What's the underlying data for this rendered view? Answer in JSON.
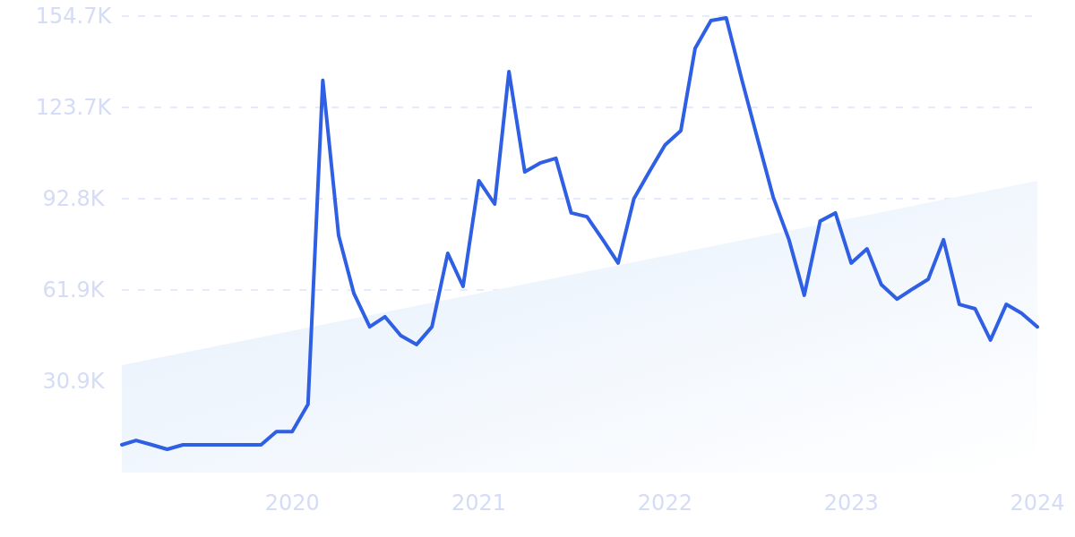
{
  "chart_data": {
    "type": "line",
    "x": [
      "2019-02",
      "2019-03",
      "2019-04",
      "2019-05",
      "2019-06",
      "2019-07",
      "2019-08",
      "2019-09",
      "2019-10",
      "2019-11",
      "2019-12",
      "2020-01",
      "2020-02",
      "2020-03",
      "2020-04",
      "2020-05",
      "2020-06",
      "2020-07",
      "2020-08",
      "2020-09",
      "2020-10",
      "2020-11",
      "2020-12",
      "2021-01",
      "2021-02",
      "2021-03",
      "2021-04",
      "2021-05",
      "2021-06",
      "2021-07",
      "2021-08",
      "2021-09",
      "2021-10",
      "2021-11",
      "2021-12",
      "2022-01",
      "2022-02",
      "2022-03",
      "2022-04",
      "2022-05",
      "2022-06",
      "2022-07",
      "2022-08",
      "2022-09",
      "2022-10",
      "2022-11",
      "2022-12",
      "2023-01",
      "2023-02",
      "2023-03",
      "2023-04",
      "2023-05",
      "2023-06",
      "2023-07",
      "2023-08",
      "2023-09",
      "2023-10",
      "2023-11",
      "2023-12",
      "2024-01"
    ],
    "series": [
      {
        "type": "area",
        "color": "#e3eefb",
        "x": [
          "2019-02",
          "2024-01"
        ],
        "values": [
          36400,
          98900
        ]
      },
      {
        "color": "#2f5fe3",
        "values": [
          9400,
          10900,
          9400,
          7900,
          9400,
          9400,
          9400,
          9400,
          9400,
          9400,
          13900,
          13900,
          23100,
          132900,
          80400,
          60700,
          49400,
          52800,
          46400,
          43400,
          49400,
          74300,
          63100,
          98900,
          91000,
          135900,
          101900,
          104900,
          106500,
          88000,
          86700,
          78900,
          71000,
          92800,
          101900,
          111000,
          115900,
          143800,
          153200,
          154100,
          132900,
          113400,
          93400,
          78900,
          60100,
          85200,
          88000,
          71000,
          75800,
          63700,
          58800,
          62200,
          65500,
          78900,
          57000,
          55500,
          44900,
          57000,
          54000,
          49400
        ]
      }
    ],
    "xlim": [
      "2019-02",
      "2024-01"
    ],
    "xticks": [
      {
        "value": "2020-01",
        "label": "2020"
      },
      {
        "value": "2021-01",
        "label": "2021"
      },
      {
        "value": "2022-01",
        "label": "2022"
      },
      {
        "value": "2023-01",
        "label": "2023"
      },
      {
        "value": "2024-01",
        "label": "2024"
      }
    ],
    "ylim": [
      0,
      154700
    ],
    "yticks": [
      {
        "value": 30900,
        "label": "30.9K"
      },
      {
        "value": 61900,
        "label": "61.9K"
      },
      {
        "value": 92800,
        "label": "92.8K"
      },
      {
        "value": 123700,
        "label": "123.7K"
      },
      {
        "value": 154700,
        "label": "154.7K"
      }
    ],
    "grid": "y",
    "marker": "none",
    "line_style": "solid"
  }
}
